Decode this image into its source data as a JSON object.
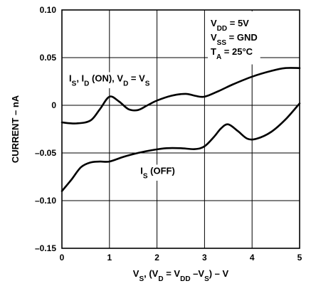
{
  "chart_data": {
    "type": "line",
    "xlim": [
      0,
      5
    ],
    "ylim": [
      -0.15,
      0.1
    ],
    "grid": true,
    "x_ticks": [
      "0",
      "1",
      "2",
      "3",
      "4",
      "5"
    ],
    "y_ticks": [
      "0.10",
      "0.05",
      "0",
      "–0.05",
      "–0.10",
      "–0.15"
    ],
    "y_tick_values": [
      0.1,
      0.05,
      0,
      -0.05,
      -0.1,
      -0.15
    ],
    "xlabel_parts": [
      {
        "t": "V"
      },
      {
        "t": "S",
        "sub": true
      },
      {
        "t": ", (V"
      },
      {
        "t": "D",
        "sub": true
      },
      {
        "t": " = V"
      },
      {
        "t": "DD",
        "sub": true
      },
      {
        "t": " –V"
      },
      {
        "t": "S",
        "sub": true
      },
      {
        "t": ") – V"
      }
    ],
    "ylabel": "CURRENT – nA",
    "conditions": [
      [
        {
          "t": "V"
        },
        {
          "t": "DD",
          "sub": true
        },
        {
          "t": " = 5V"
        }
      ],
      [
        {
          "t": "V"
        },
        {
          "t": "SS",
          "sub": true
        },
        {
          "t": " = GND"
        }
      ],
      [
        {
          "t": "T"
        },
        {
          "t": "A",
          "sub": true
        },
        {
          "t": " = 25°C"
        }
      ]
    ],
    "series": [
      {
        "label_parts": [
          {
            "t": "I"
          },
          {
            "t": "S",
            "sub": true
          },
          {
            "t": ", I"
          },
          {
            "t": "D",
            "sub": true
          },
          {
            "t": " (ON), V"
          },
          {
            "t": "D",
            "sub": true
          },
          {
            "t": " = V"
          },
          {
            "t": "S",
            "sub": true
          }
        ],
        "label_pos": [
          0.15,
          0.025
        ],
        "x": [
          0,
          0.3,
          0.6,
          0.8,
          1.0,
          1.2,
          1.4,
          1.6,
          1.8,
          2.0,
          2.3,
          2.6,
          2.8,
          3.0,
          3.3,
          3.6,
          4.0,
          4.4,
          4.7,
          5.0
        ],
        "y": [
          -0.018,
          -0.019,
          -0.016,
          -0.004,
          0.009,
          0.004,
          -0.004,
          -0.005,
          0.0,
          0.005,
          0.01,
          0.012,
          0.01,
          0.009,
          0.015,
          0.022,
          0.03,
          0.036,
          0.039,
          0.039
        ]
      },
      {
        "label_parts": [
          {
            "t": "I"
          },
          {
            "t": "S",
            "sub": true
          },
          {
            "t": " (OFF)"
          }
        ],
        "label_pos": [
          1.65,
          -0.072
        ],
        "x": [
          0,
          0.2,
          0.4,
          0.6,
          0.8,
          1.0,
          1.3,
          1.6,
          1.9,
          2.2,
          2.5,
          2.8,
          3.0,
          3.2,
          3.35,
          3.5,
          3.7,
          3.9,
          4.1,
          4.4,
          4.7,
          5.0
        ],
        "y": [
          -0.09,
          -0.078,
          -0.065,
          -0.06,
          -0.059,
          -0.059,
          -0.054,
          -0.05,
          -0.047,
          -0.045,
          -0.045,
          -0.046,
          -0.043,
          -0.033,
          -0.024,
          -0.02,
          -0.027,
          -0.035,
          -0.035,
          -0.028,
          -0.015,
          0.002
        ]
      }
    ]
  }
}
